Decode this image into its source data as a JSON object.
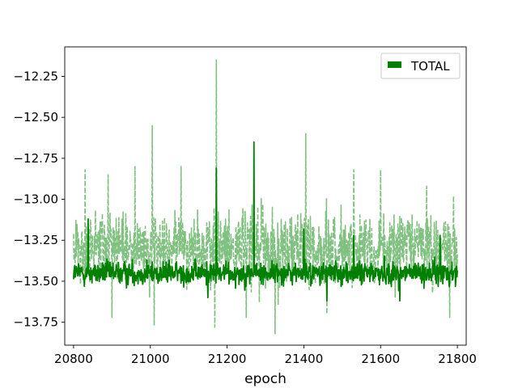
{
  "chart_data": {
    "type": "line",
    "title": "",
    "xlabel": "epoch",
    "ylabel": "",
    "xlim": [
      20777,
      21823
    ],
    "ylim": [
      -13.89,
      -12.07
    ],
    "xticks": [
      20800,
      21000,
      21200,
      21400,
      21600,
      21800
    ],
    "yticks": [
      -12.25,
      -12.5,
      -12.75,
      -13.0,
      -13.25,
      -13.5,
      -13.75
    ],
    "xtick_labels": [
      "20800",
      "21000",
      "21200",
      "21400",
      "21600",
      "21800"
    ],
    "ytick_labels": [
      "−12.25",
      "−12.50",
      "−12.75",
      "−13.00",
      "−13.25",
      "−13.50",
      "−13.75"
    ],
    "grid": false,
    "legend_position": "top-right",
    "legend": [
      {
        "label": "TOTAL",
        "color": "#008000"
      }
    ],
    "x_range": [
      20800,
      21800
    ],
    "series": [
      {
        "name": "TOTAL",
        "style": "solid",
        "color": "#008000",
        "baseline": -13.45,
        "noise": 0.09,
        "spikes": [
          {
            "x": 20838,
            "y": -13.12
          },
          {
            "x": 21172,
            "y": -12.81
          },
          {
            "x": 21270,
            "y": -12.65
          },
          {
            "x": 21400,
            "y": -13.18
          },
          {
            "x": 21530,
            "y": -13.22
          },
          {
            "x": 21755,
            "y": -13.22
          },
          {
            "x": 21150,
            "y": -13.6
          },
          {
            "x": 21460,
            "y": -13.62
          },
          {
            "x": 21650,
            "y": -13.62
          }
        ]
      },
      {
        "name": "",
        "style": "dashed",
        "color": "#80c080",
        "baseline": -13.3,
        "noise": 0.28,
        "spikes": [
          {
            "x": 20830,
            "y": -12.82
          },
          {
            "x": 20890,
            "y": -12.85
          },
          {
            "x": 20960,
            "y": -12.8
          },
          {
            "x": 21005,
            "y": -12.55
          },
          {
            "x": 21010,
            "y": -13.77
          },
          {
            "x": 21080,
            "y": -12.8
          },
          {
            "x": 21172,
            "y": -12.15
          },
          {
            "x": 21168,
            "y": -13.78
          },
          {
            "x": 21325,
            "y": -13.82
          },
          {
            "x": 21405,
            "y": -12.6
          },
          {
            "x": 21530,
            "y": -12.82
          },
          {
            "x": 21600,
            "y": -12.82
          },
          {
            "x": 21720,
            "y": -12.92
          },
          {
            "x": 21790,
            "y": -12.98
          },
          {
            "x": 20900,
            "y": -13.72
          },
          {
            "x": 21250,
            "y": -13.72
          },
          {
            "x": 21460,
            "y": -13.7
          },
          {
            "x": 21780,
            "y": -13.72
          }
        ]
      }
    ]
  }
}
